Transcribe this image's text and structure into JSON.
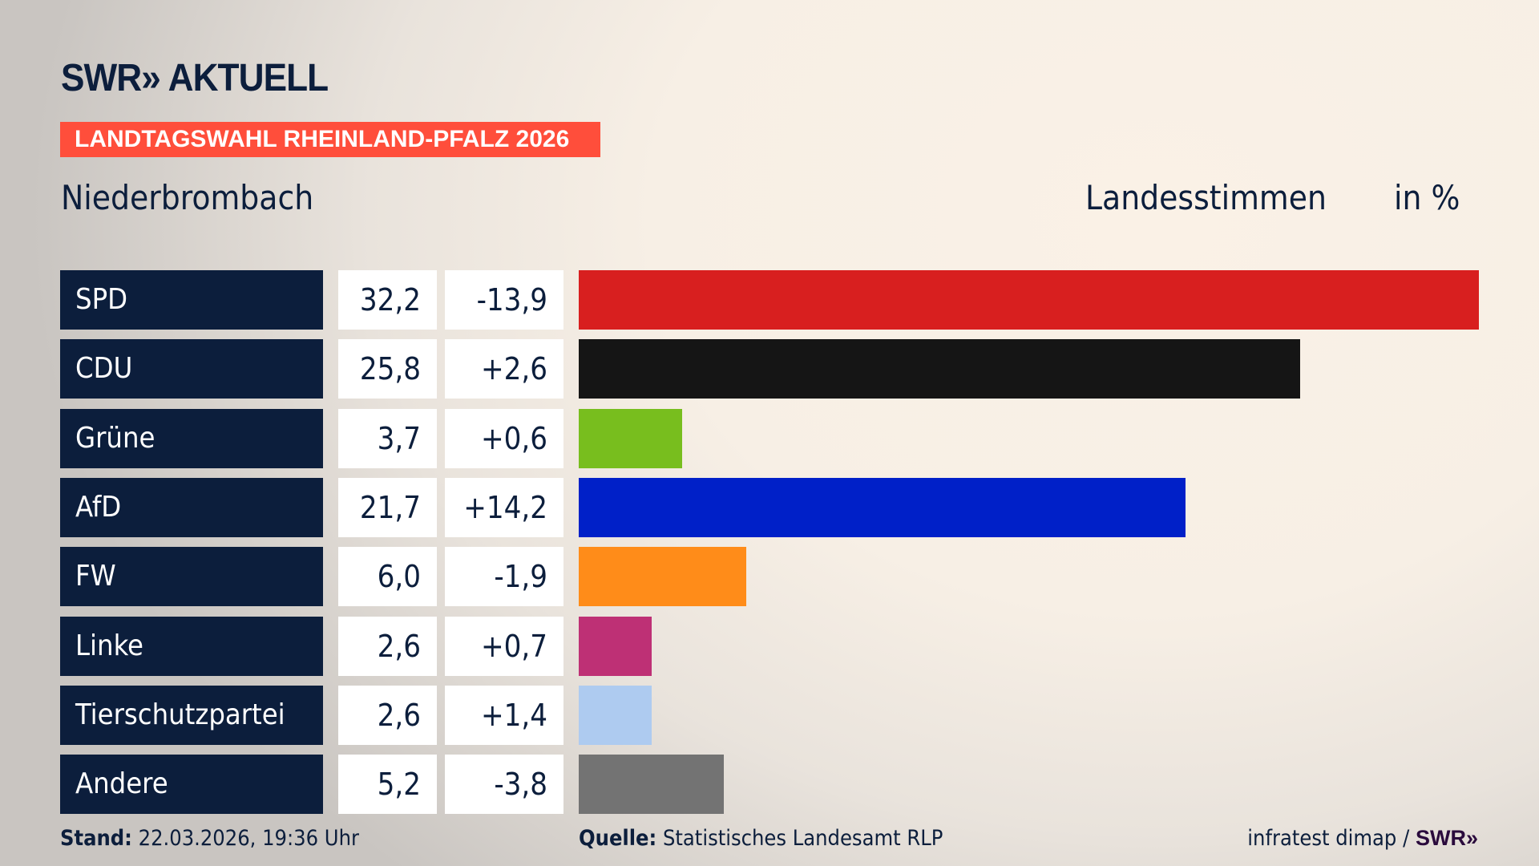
{
  "header": {
    "logo": "SWR» AKTUELL",
    "banner": "LANDTAGSWAHL RHEINLAND-PFALZ 2026",
    "place": "Niederbrombach",
    "measure": "Landesstimmen",
    "unit": "in %"
  },
  "colors": {
    "banner": "#ff4e3b",
    "label_bg": "#0c1e3c"
  },
  "chart_data": {
    "type": "bar",
    "orientation": "horizontal",
    "xlim": [
      0,
      32.2
    ],
    "categories": [
      "SPD",
      "CDU",
      "Grüne",
      "AfD",
      "FW",
      "Linke",
      "Tierschutzpartei",
      "Andere"
    ],
    "values": [
      32.2,
      25.8,
      3.7,
      21.7,
      6.0,
      2.6,
      2.6,
      5.2
    ],
    "value_labels": [
      "32,2",
      "25,8",
      "3,7",
      "21,7",
      "6,0",
      "2,6",
      "2,6",
      "5,2"
    ],
    "diff_labels": [
      "-13,9",
      "+2,6",
      "+0,6",
      "+14,2",
      "-1,9",
      "+0,7",
      "+1,4",
      "-3,8"
    ],
    "colors": [
      "#d81f1f",
      "#151515",
      "#78be1e",
      "#0020c8",
      "#ff8c19",
      "#be3075",
      "#aecbf0",
      "#737373"
    ]
  },
  "footer": {
    "stand_label": "Stand:",
    "stand_value": "22.03.2026, 19:36 Uhr",
    "source_label": "Quelle:",
    "source_value": "Statistisches Landesamt RLP",
    "credit": "infratest dimap /",
    "credit_logo": "SWR»"
  }
}
